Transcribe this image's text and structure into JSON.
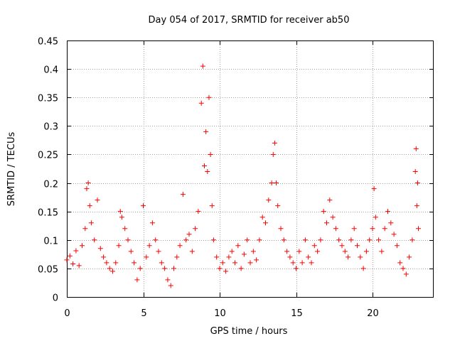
{
  "chart_data": {
    "type": "scatter",
    "title": "Day 054 of 2017, SRMTID for receiver ab50",
    "xlabel": "GPS time / hours",
    "ylabel": "SRMTID / TECUs",
    "xlim": [
      0,
      24
    ],
    "ylim": [
      0,
      0.45
    ],
    "x_ticks": [
      0,
      5,
      10,
      15,
      20
    ],
    "y_ticks": [
      0,
      0.05,
      0.1,
      0.15,
      0.2,
      0.25,
      0.3,
      0.35,
      0.4,
      0.45
    ],
    "x_tick_labels": [
      "0",
      "5",
      "10",
      "15",
      "20"
    ],
    "y_tick_labels": [
      "0",
      "0.05",
      "0.1",
      "0.15",
      "0.2",
      "0.25",
      "0.3",
      "0.35",
      "0.4",
      "0.45"
    ],
    "grid": true,
    "marker": "+",
    "color": "#ff0000",
    "series": [
      {
        "name": "SRMTID",
        "points": [
          [
            0.0,
            0.065
          ],
          [
            0.2,
            0.072
          ],
          [
            0.4,
            0.058
          ],
          [
            0.6,
            0.081
          ],
          [
            0.8,
            0.055
          ],
          [
            1.0,
            0.09
          ],
          [
            1.2,
            0.12
          ],
          [
            1.3,
            0.19
          ],
          [
            1.4,
            0.2
          ],
          [
            1.5,
            0.16
          ],
          [
            1.6,
            0.13
          ],
          [
            1.8,
            0.1
          ],
          [
            2.0,
            0.17
          ],
          [
            2.2,
            0.085
          ],
          [
            2.4,
            0.07
          ],
          [
            2.6,
            0.06
          ],
          [
            2.8,
            0.05
          ],
          [
            3.0,
            0.045
          ],
          [
            3.2,
            0.06
          ],
          [
            3.4,
            0.09
          ],
          [
            3.5,
            0.15
          ],
          [
            3.6,
            0.14
          ],
          [
            3.8,
            0.12
          ],
          [
            4.0,
            0.1
          ],
          [
            4.2,
            0.08
          ],
          [
            4.4,
            0.06
          ],
          [
            4.6,
            0.03
          ],
          [
            4.8,
            0.05
          ],
          [
            5.0,
            0.16
          ],
          [
            5.2,
            0.07
          ],
          [
            5.4,
            0.09
          ],
          [
            5.6,
            0.13
          ],
          [
            5.8,
            0.1
          ],
          [
            6.0,
            0.08
          ],
          [
            6.2,
            0.06
          ],
          [
            6.4,
            0.05
          ],
          [
            6.6,
            0.03
          ],
          [
            6.8,
            0.02
          ],
          [
            7.0,
            0.05
          ],
          [
            7.2,
            0.07
          ],
          [
            7.4,
            0.09
          ],
          [
            7.6,
            0.18
          ],
          [
            7.8,
            0.1
          ],
          [
            8.0,
            0.11
          ],
          [
            8.2,
            0.08
          ],
          [
            8.4,
            0.12
          ],
          [
            8.6,
            0.15
          ],
          [
            8.8,
            0.34
          ],
          [
            8.9,
            0.405
          ],
          [
            9.0,
            0.23
          ],
          [
            9.1,
            0.29
          ],
          [
            9.2,
            0.22
          ],
          [
            9.3,
            0.35
          ],
          [
            9.4,
            0.25
          ],
          [
            9.5,
            0.16
          ],
          [
            9.6,
            0.1
          ],
          [
            9.8,
            0.07
          ],
          [
            10.0,
            0.05
          ],
          [
            10.2,
            0.06
          ],
          [
            10.4,
            0.045
          ],
          [
            10.6,
            0.07
          ],
          [
            10.8,
            0.08
          ],
          [
            11.0,
            0.06
          ],
          [
            11.2,
            0.09
          ],
          [
            11.4,
            0.05
          ],
          [
            11.6,
            0.075
          ],
          [
            11.8,
            0.1
          ],
          [
            12.0,
            0.06
          ],
          [
            12.2,
            0.08
          ],
          [
            12.4,
            0.065
          ],
          [
            12.6,
            0.1
          ],
          [
            12.8,
            0.14
          ],
          [
            13.0,
            0.13
          ],
          [
            13.2,
            0.17
          ],
          [
            13.4,
            0.2
          ],
          [
            13.5,
            0.25
          ],
          [
            13.6,
            0.27
          ],
          [
            13.7,
            0.2
          ],
          [
            13.8,
            0.16
          ],
          [
            14.0,
            0.12
          ],
          [
            14.2,
            0.1
          ],
          [
            14.4,
            0.08
          ],
          [
            14.6,
            0.07
          ],
          [
            14.8,
            0.06
          ],
          [
            15.0,
            0.05
          ],
          [
            15.2,
            0.08
          ],
          [
            15.4,
            0.06
          ],
          [
            15.6,
            0.1
          ],
          [
            15.8,
            0.07
          ],
          [
            16.0,
            0.06
          ],
          [
            16.2,
            0.09
          ],
          [
            16.4,
            0.08
          ],
          [
            16.6,
            0.1
          ],
          [
            16.8,
            0.15
          ],
          [
            17.0,
            0.13
          ],
          [
            17.2,
            0.17
          ],
          [
            17.4,
            0.14
          ],
          [
            17.6,
            0.12
          ],
          [
            17.8,
            0.1
          ],
          [
            18.0,
            0.09
          ],
          [
            18.2,
            0.08
          ],
          [
            18.4,
            0.07
          ],
          [
            18.6,
            0.1
          ],
          [
            18.8,
            0.12
          ],
          [
            19.0,
            0.09
          ],
          [
            19.2,
            0.07
          ],
          [
            19.4,
            0.05
          ],
          [
            19.6,
            0.08
          ],
          [
            19.8,
            0.1
          ],
          [
            20.0,
            0.12
          ],
          [
            20.1,
            0.19
          ],
          [
            20.2,
            0.14
          ],
          [
            20.4,
            0.1
          ],
          [
            20.6,
            0.08
          ],
          [
            20.8,
            0.12
          ],
          [
            21.0,
            0.15
          ],
          [
            21.2,
            0.13
          ],
          [
            21.4,
            0.11
          ],
          [
            21.6,
            0.09
          ],
          [
            21.8,
            0.06
          ],
          [
            22.0,
            0.05
          ],
          [
            22.2,
            0.04
          ],
          [
            22.4,
            0.07
          ],
          [
            22.6,
            0.1
          ],
          [
            22.8,
            0.22
          ],
          [
            22.85,
            0.26
          ],
          [
            22.9,
            0.16
          ],
          [
            22.95,
            0.2
          ],
          [
            23.0,
            0.12
          ]
        ]
      }
    ]
  }
}
